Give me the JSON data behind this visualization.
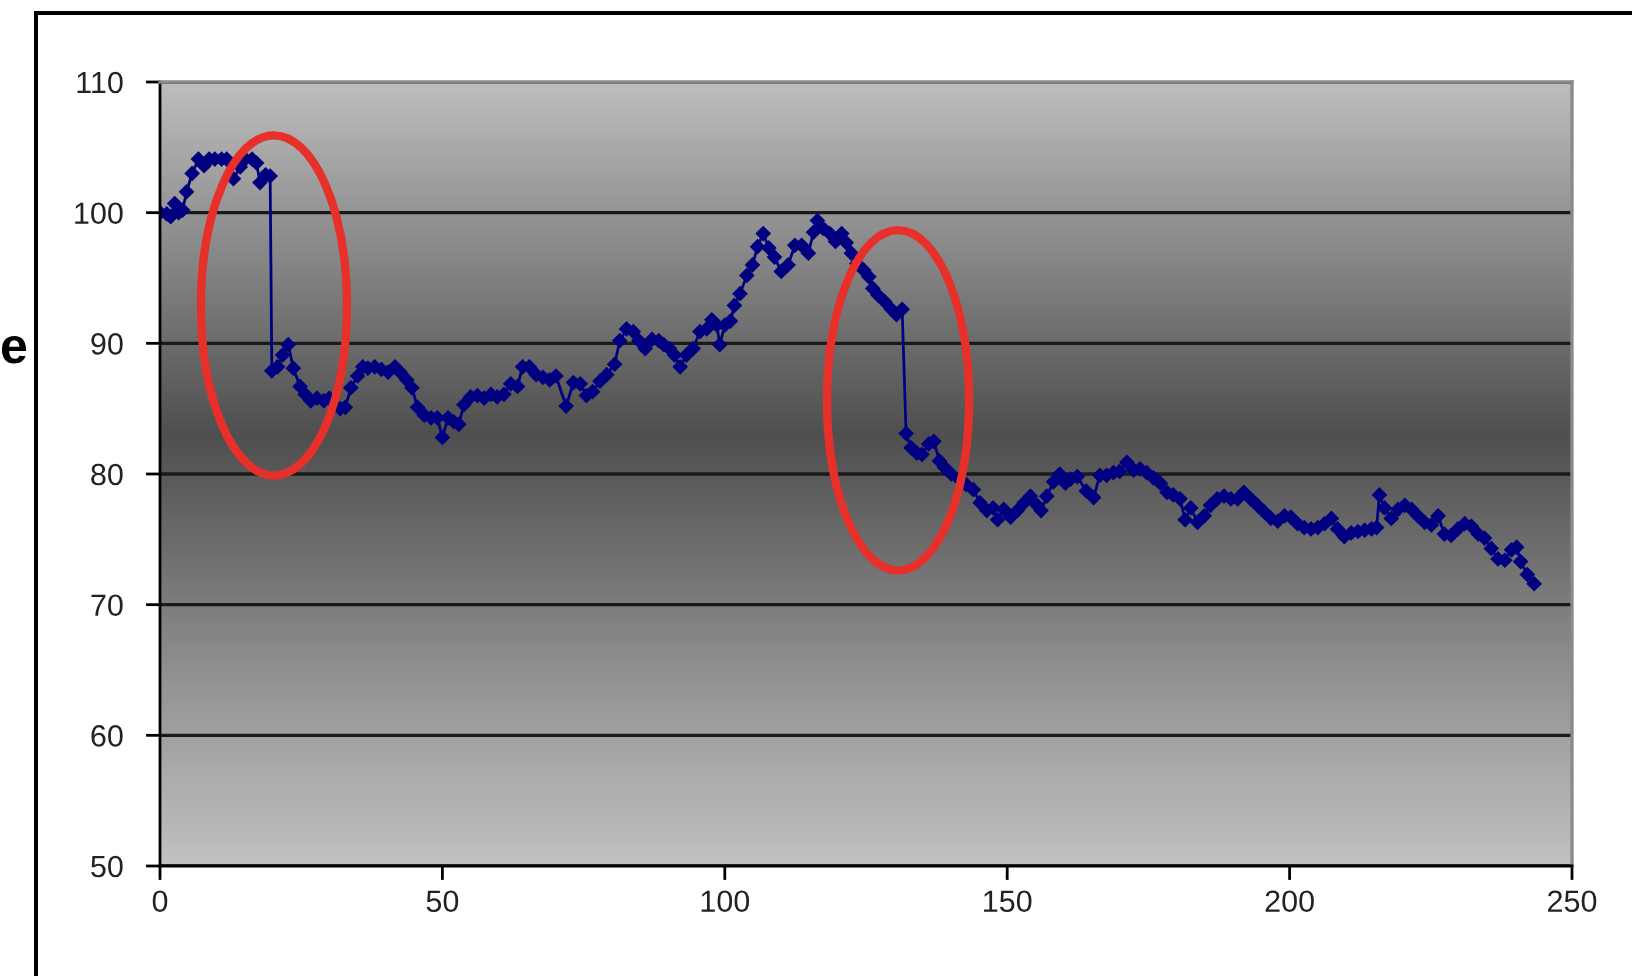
{
  "chart_data": {
    "type": "line",
    "x": [
      0,
      1.2,
      1.9,
      2.6,
      3.3,
      4,
      4.7,
      5.7,
      6.8,
      7.8,
      8.7,
      9.7,
      10.9,
      11.8,
      13,
      14.2,
      15.1,
      16.3,
      17.1,
      17.7,
      18.7,
      19.5,
      19.8,
      20.8,
      21.7,
      22.7,
      23.6,
      24.8,
      25.7,
      26.7,
      27.8,
      29,
      30,
      31.9,
      32.8,
      33.8,
      35,
      35.9,
      36.8,
      38,
      39.2,
      40.4,
      41.6,
      42.5,
      43.7,
      44.6,
      45.6,
      46.8,
      48,
      49.1,
      50,
      51,
      52,
      52.9,
      53.8,
      55,
      56.2,
      57.4,
      58.6,
      59.7,
      60.9,
      62.1,
      63.3,
      64.2,
      65.4,
      66.6,
      67.8,
      69,
      70.1,
      71.9,
      73.2,
      74.4,
      75.5,
      76.6,
      77.9,
      79.1,
      80.5,
      81.4,
      82.6,
      83.8,
      84.8,
      85.9,
      87.1,
      88.3,
      89.2,
      90.2,
      91.1,
      92.1,
      93.2,
      94.4,
      95.6,
      96.8,
      97.7,
      98.6,
      99.1,
      100,
      101,
      101.7,
      102.7,
      103.9,
      104.9,
      105.8,
      106.8,
      107.8,
      108.8,
      110,
      111.2,
      112.4,
      113.6,
      114.8,
      115.7,
      116.4,
      117.4,
      118.6,
      119.6,
      120.7,
      121.5,
      122.4,
      123.4,
      124.6,
      125.5,
      126.2,
      127.1,
      128.3,
      129.5,
      130.4,
      131.4,
      132.1,
      133,
      134,
      134.9,
      136.1,
      137,
      138,
      138.9,
      140.1,
      141.5,
      142.7,
      144,
      145.2,
      146.4,
      147.5,
      148.3,
      149.4,
      150.6,
      151.8,
      153,
      154.1,
      155.3,
      156,
      157,
      158.2,
      159.3,
      160.3,
      161.2,
      162.4,
      164,
      165.3,
      166.4,
      167.6,
      168.8,
      169.9,
      171.2,
      172.4,
      173.5,
      174.7,
      175.9,
      177.1,
      178.3,
      179.4,
      180.6,
      181.5,
      182.5,
      183.7,
      184.9,
      186,
      187.2,
      188.4,
      189.6,
      190.8,
      191.9,
      193.1,
      194.3,
      195.5,
      196.7,
      197.9,
      199.1,
      200.2,
      201.4,
      202.6,
      203.8,
      205,
      206.2,
      207.4,
      208.5,
      209.7,
      210.9,
      212.1,
      213.3,
      214.5,
      215.4,
      215.9,
      216.8,
      218,
      219.2,
      220.4,
      221.6,
      222.7,
      223.9,
      225.1,
      226.3,
      227.4,
      228.6,
      229.8,
      231,
      232.2,
      233.4,
      234.5,
      235.7,
      236.9,
      238.1,
      239.3,
      240.2,
      240.9,
      242.1,
      243.3
    ],
    "series": [
      {
        "color": "#000080",
        "values": [
          100,
          99.9,
          99.7,
          100.7,
          100,
          100.2,
          101.6,
          103,
          104.1,
          103.6,
          104.1,
          104.1,
          104.1,
          104.1,
          102.6,
          103.5,
          104.1,
          104.1,
          103.8,
          102.3,
          102.9,
          102.8,
          87.9,
          88.2,
          89.1,
          89.9,
          88.1,
          86.7,
          86.1,
          85.6,
          85.8,
          85.6,
          85.8,
          85,
          85.1,
          86.6,
          87.5,
          88.2,
          88.1,
          88.2,
          88,
          87.8,
          88.2,
          87.8,
          87.2,
          86.6,
          85.1,
          84.5,
          84.3,
          84.3,
          82.8,
          84.3,
          84,
          83.8,
          85.3,
          85.9,
          86,
          85.8,
          86.1,
          85.9,
          86.1,
          86.9,
          86.7,
          88.2,
          88.2,
          87.6,
          87.4,
          87.2,
          87.5,
          85.2,
          87,
          86.9,
          86,
          86.3,
          87.1,
          87.6,
          88.4,
          90.2,
          91.1,
          90.9,
          90.2,
          89.6,
          90.3,
          90.2,
          89.9,
          89.6,
          89.1,
          88.2,
          89.1,
          89.6,
          90.9,
          91.1,
          91.8,
          91.4,
          89.9,
          91.4,
          91.7,
          92.9,
          93.8,
          95.2,
          96,
          97.4,
          98.4,
          97.3,
          96.6,
          95.5,
          96,
          97.5,
          97.5,
          96.9,
          98.5,
          99.4,
          98.8,
          98.4,
          97.8,
          98.4,
          97.7,
          96.9,
          96.1,
          95.6,
          95.1,
          94.2,
          93.7,
          93.2,
          92.6,
          92.2,
          92.6,
          83.1,
          82,
          81.6,
          81.5,
          82.3,
          82.5,
          81,
          80.5,
          80,
          79.6,
          79.2,
          78.8,
          77.8,
          77.2,
          77.4,
          76.5,
          77.3,
          76.7,
          77.2,
          77.8,
          78.3,
          77.6,
          77.2,
          78.3,
          79.4,
          80,
          79.3,
          79.6,
          79.8,
          78.7,
          78.2,
          79.9,
          79.9,
          80.1,
          80.2,
          80.9,
          80.3,
          80.4,
          80.1,
          79.7,
          79.3,
          78.6,
          78.4,
          78.1,
          76.5,
          77.4,
          76.3,
          76.8,
          77.6,
          78.1,
          78.3,
          78.1,
          78.1,
          78.6,
          78.1,
          77.6,
          77.1,
          76.6,
          76.4,
          76.8,
          76.7,
          76.2,
          75.9,
          75.8,
          75.9,
          76.2,
          76.6,
          75.8,
          75.2,
          75.5,
          75.6,
          75.7,
          75.8,
          75.9,
          78.4,
          77.4,
          76.6,
          77.3,
          77.6,
          77.3,
          76.8,
          76.3,
          76.1,
          76.8,
          75.4,
          75.3,
          75.8,
          76.2,
          76,
          75.4,
          75.1,
          74.3,
          73.5,
          73.4,
          74.2,
          74.4,
          73.3,
          72.3,
          71.6
        ]
      }
    ],
    "xlim": [
      0,
      250
    ],
    "xticks": [
      0,
      50,
      100,
      150,
      200,
      250
    ],
    "ylim": [
      50,
      110
    ],
    "yticks": [
      50,
      60,
      70,
      80,
      90,
      100,
      110
    ],
    "grid": "y",
    "marker": "diamond",
    "line_style": "solid",
    "annotations": [
      "e"
    ]
  }
}
